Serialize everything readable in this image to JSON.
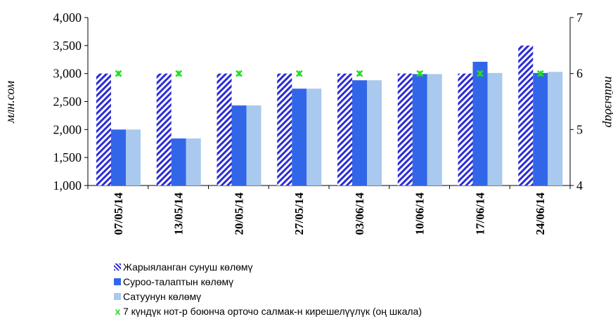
{
  "chart_data": {
    "type": "bar",
    "categories": [
      "07/05/14",
      "13/05/14",
      "20/05/14",
      "27/05/14",
      "03/06/14",
      "10/06/14",
      "17/06/14",
      "24/06/14"
    ],
    "series": [
      {
        "name": "Жарыяланган сунуш көлөмү",
        "axis": "left",
        "values": [
          3000,
          3000,
          3000,
          3000,
          3000,
          3000,
          3000,
          3500
        ],
        "color": "#2b2bd6",
        "pattern": "diagonal-hatch"
      },
      {
        "name": "Суроо-талаптын көлөмү",
        "axis": "left",
        "values": [
          2000,
          1840,
          2430,
          2730,
          2880,
          2990,
          3210,
          3010
        ],
        "color": "#3266e8"
      },
      {
        "name": "Сатуунун көлөмү",
        "axis": "left",
        "values": [
          2000,
          1840,
          2430,
          2730,
          2880,
          2990,
          3010,
          3030
        ],
        "color": "#a9c9ee"
      },
      {
        "name": "7 күндүк нот-р боюнча орточо салмак-н кирешелүүлүк (оң шкала)",
        "axis": "right",
        "type": "scatter",
        "values": [
          6,
          6,
          6,
          6,
          6,
          6,
          6,
          6
        ],
        "color": "#22dd22",
        "marker": "x"
      }
    ],
    "ylabel": "млн.сом",
    "y2label": "пайыздар",
    "ylim": [
      1000,
      4000
    ],
    "y_ticks": [
      "1,000",
      "1,500",
      "2,000",
      "2,500",
      "3,000",
      "3,500",
      "4,000"
    ],
    "y2lim": [
      4,
      7
    ],
    "y2_ticks": [
      "4",
      "5",
      "6",
      "7"
    ],
    "grid": false,
    "legend_position": "bottom"
  }
}
